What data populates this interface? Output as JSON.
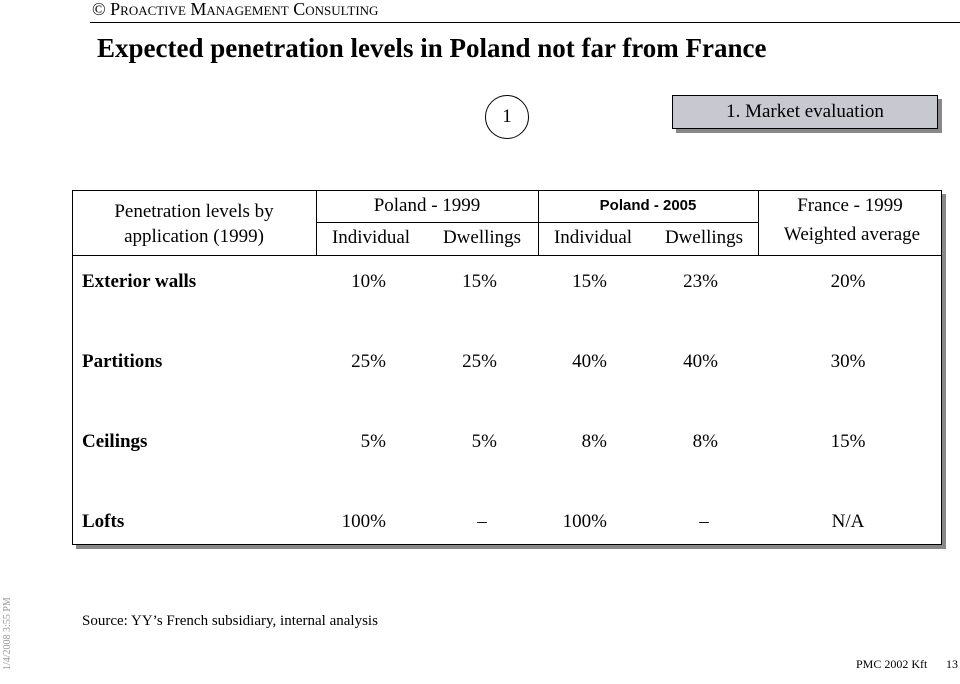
{
  "header": {
    "copyright": "© Proactive Management Consulting",
    "title": "Expected penetration levels in Poland not far from France",
    "section_number": "1",
    "section": "1. Market evaluation"
  },
  "table": {
    "row_header": "Penetration levels by application (1999)",
    "groups": [
      "Poland - 1999",
      "Poland - 2005",
      "France - 1999"
    ],
    "columns": [
      "Individual",
      "Dwellings",
      "Individual",
      "Dwellings",
      "Weighted average"
    ],
    "rows": [
      [
        "Exterior walls",
        "10%",
        "15%",
        "15%",
        "23%",
        "20%"
      ],
      [
        "Partitions",
        "25%",
        "25%",
        "40%",
        "40%",
        "30%"
      ],
      [
        "Ceilings",
        "5%",
        "5%",
        "8%",
        "8%",
        "15%"
      ],
      [
        "Lofts",
        "100%",
        "–",
        "100%",
        "–",
        "N/A"
      ]
    ]
  },
  "source": "Source: YY’s French subsidiary, internal analysis",
  "footer": {
    "date": "1/4/2008 3:55 PM",
    "company": "PMC 2002 Kft",
    "page": "13"
  }
}
